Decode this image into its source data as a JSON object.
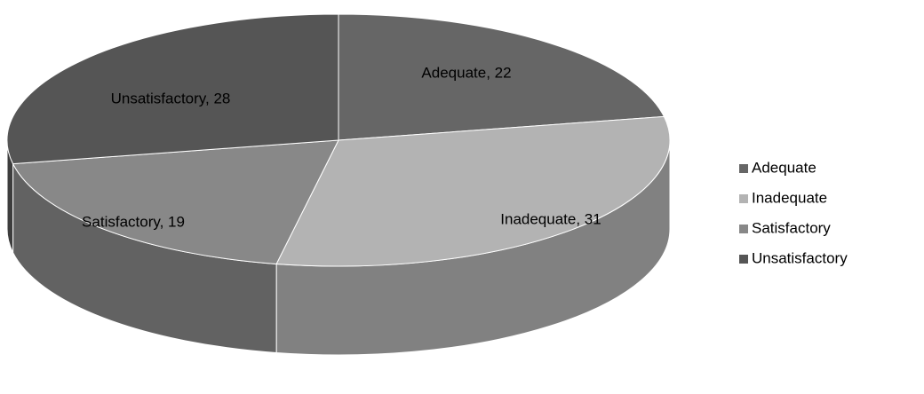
{
  "chart_data": {
    "type": "pie",
    "categories": [
      "Adequate",
      "Inadequate",
      "Satisfactory",
      "Unsatisfactory"
    ],
    "values": [
      22,
      31,
      19,
      28
    ],
    "value_labels": [
      "Adequate, 22",
      "Inadequate, 31",
      "Satisfactory, 19",
      "Unsatisfactory, 28"
    ],
    "colors": [
      "#666666",
      "#b3b3b3",
      "#888888",
      "#555555"
    ],
    "legend": "right"
  }
}
